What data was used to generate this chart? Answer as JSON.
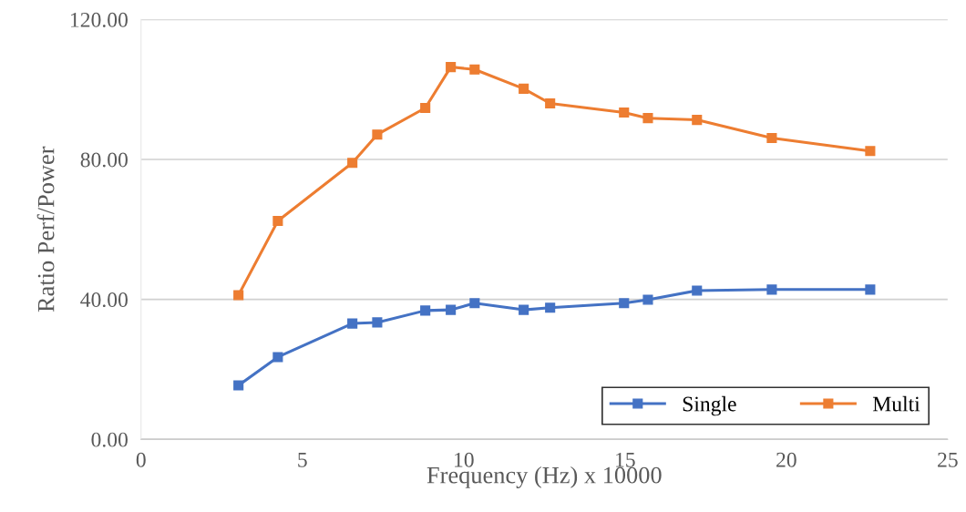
{
  "chart_data": {
    "type": "line",
    "xlabel": "Frequency (Hz) x 10000",
    "ylabel": "Ratio Perf/Power",
    "x": [
      3.02,
      4.24,
      6.55,
      7.32,
      8.81,
      9.6,
      10.34,
      11.86,
      12.68,
      14.97,
      15.71,
      17.23,
      19.55,
      22.6
    ],
    "series": [
      {
        "name": "Single",
        "color": "#4472c4",
        "values": [
          15.4,
          23.5,
          33.1,
          33.4,
          36.8,
          37.0,
          38.9,
          37.0,
          37.6,
          38.9,
          39.9,
          42.5,
          42.8,
          42.8
        ]
      },
      {
        "name": "Multi",
        "color": "#ed7d31",
        "values": [
          41.2,
          62.4,
          79.0,
          87.1,
          94.7,
          106.4,
          105.7,
          100.2,
          96.0,
          93.4,
          91.8,
          91.3,
          86.1,
          82.4
        ]
      }
    ],
    "xlim": [
      0,
      25
    ],
    "xticks": [
      0,
      5,
      10,
      15,
      20,
      25
    ],
    "ylim": [
      0,
      120
    ],
    "yticks": [
      {
        "value": 0,
        "label": "0.00"
      },
      {
        "value": 40,
        "label": "40.00"
      },
      {
        "value": 80,
        "label": "80.00"
      },
      {
        "value": 120,
        "label": "120.00"
      }
    ],
    "grid": "y",
    "legend": "bottom right",
    "marker": "square",
    "line_style": "solid"
  }
}
